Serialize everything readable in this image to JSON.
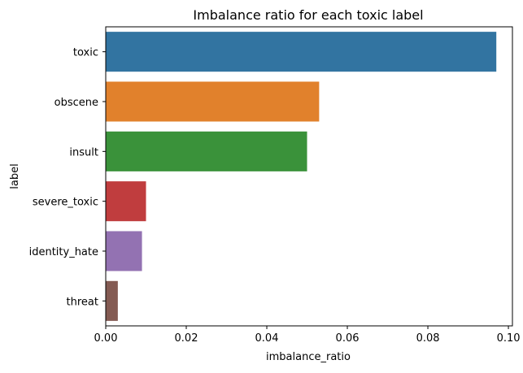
{
  "chart_data": {
    "type": "bar",
    "orientation": "horizontal",
    "title": "Imbalance ratio for each toxic label",
    "xlabel": "imbalance_ratio",
    "ylabel": "label",
    "categories": [
      "toxic",
      "obscene",
      "insult",
      "severe_toxic",
      "identity_hate",
      "threat"
    ],
    "values": [
      0.097,
      0.053,
      0.05,
      0.01,
      0.009,
      0.003
    ],
    "colors": [
      "#3274a1",
      "#e1812c",
      "#3a923a",
      "#c03d3e",
      "#9372b2",
      "#845b53"
    ],
    "xlim": [
      0.0,
      0.101
    ],
    "xticks": [
      0.0,
      0.02,
      0.04,
      0.06,
      0.08,
      0.1
    ],
    "xtick_labels": [
      "0.00",
      "0.02",
      "0.04",
      "0.06",
      "0.08",
      "0.10"
    ],
    "grid": false,
    "legend": "none"
  }
}
